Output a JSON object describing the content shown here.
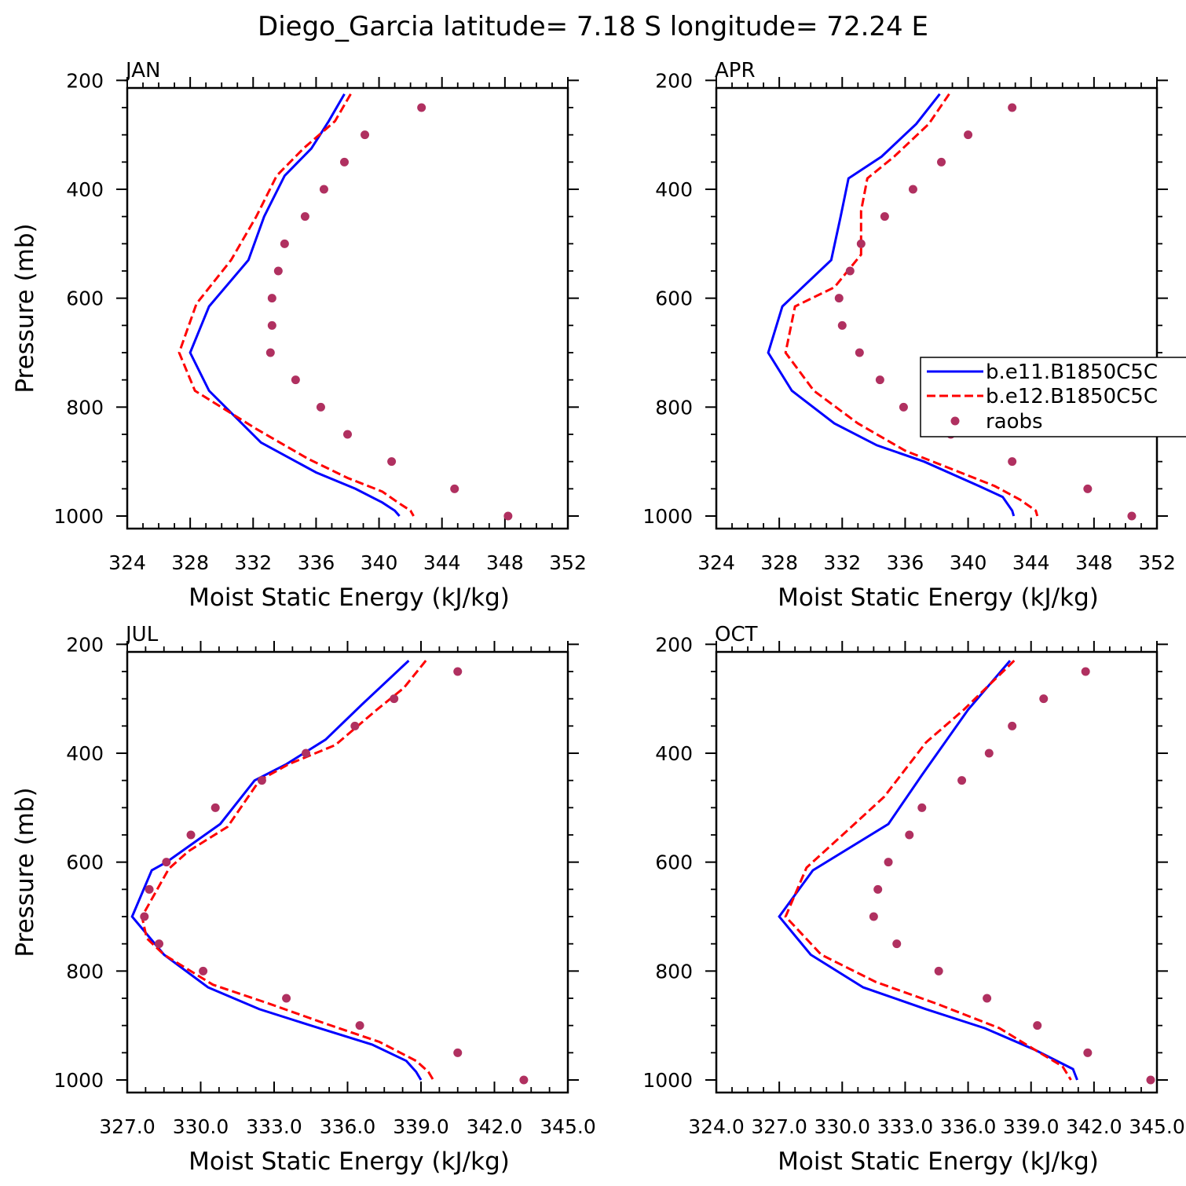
{
  "title": "Diego_Garcia  latitude= 7.18 S longitude= 72.24 E",
  "colors": {
    "series1": "#0000ff",
    "series2": "#ff0000",
    "raobs": "#b03060"
  },
  "chart_data": [
    {
      "type": "line",
      "panel": "JAN",
      "xlabel": "Moist Static Energy (kJ/kg)",
      "ylabel": "Pressure (mb)",
      "xlim": [
        324,
        352
      ],
      "ylim": [
        1000,
        200
      ],
      "xticks": [
        "324",
        "328",
        "332",
        "336",
        "340",
        "344",
        "348",
        "352"
      ],
      "xtick_values": [
        324,
        328,
        332,
        336,
        340,
        344,
        348,
        352
      ],
      "yticks": [
        "200",
        "400",
        "600",
        "800",
        "1000"
      ],
      "ytick_values": [
        200,
        400,
        600,
        800,
        1000
      ],
      "series": [
        {
          "kind": "solid",
          "color": "#0000ff",
          "points": [
            [
              337.8,
              225
            ],
            [
              336.8,
              275
            ],
            [
              335.7,
              325
            ],
            [
              334.0,
              375
            ],
            [
              332.7,
              450
            ],
            [
              331.7,
              530
            ],
            [
              329.2,
              615
            ],
            [
              328.0,
              700
            ],
            [
              329.2,
              770
            ],
            [
              332.5,
              865
            ],
            [
              336.0,
              920
            ],
            [
              338.5,
              950
            ],
            [
              340.2,
              975
            ],
            [
              341.0,
              990
            ],
            [
              341.3,
              1000
            ]
          ]
        },
        {
          "kind": "dashed",
          "color": "#ff0000",
          "points": [
            [
              338.2,
              225
            ],
            [
              337.2,
              275
            ],
            [
              335.2,
              325
            ],
            [
              333.5,
              375
            ],
            [
              332.2,
              450
            ],
            [
              330.6,
              530
            ],
            [
              328.4,
              610
            ],
            [
              327.3,
              700
            ],
            [
              328.3,
              770
            ],
            [
              332.2,
              840
            ],
            [
              335.5,
              895
            ],
            [
              338.0,
              930
            ],
            [
              340.2,
              955
            ],
            [
              341.2,
              975
            ],
            [
              342.0,
              990
            ],
            [
              342.2,
              1000
            ]
          ]
        },
        {
          "kind": "dots",
          "color": "#b03060",
          "points": [
            [
              342.7,
              250
            ],
            [
              339.1,
              300
            ],
            [
              337.8,
              350
            ],
            [
              336.5,
              400
            ],
            [
              335.3,
              450
            ],
            [
              334.0,
              500
            ],
            [
              333.6,
              550
            ],
            [
              333.2,
              600
            ],
            [
              333.2,
              650
            ],
            [
              333.1,
              700
            ],
            [
              334.7,
              750
            ],
            [
              336.3,
              800
            ],
            [
              338.0,
              850
            ],
            [
              340.8,
              900
            ],
            [
              344.8,
              950
            ],
            [
              348.2,
              1000
            ]
          ]
        }
      ]
    },
    {
      "type": "line",
      "panel": "APR",
      "xlabel": "Moist Static Energy (kJ/kg)",
      "ylabel": "",
      "xlim": [
        324,
        352
      ],
      "ylim": [
        1000,
        200
      ],
      "xticks": [
        "324",
        "328",
        "332",
        "336",
        "340",
        "344",
        "348",
        "352"
      ],
      "xtick_values": [
        324,
        328,
        332,
        336,
        340,
        344,
        348,
        352
      ],
      "yticks": [
        "200",
        "400",
        "600",
        "800",
        "1000"
      ],
      "ytick_values": [
        200,
        400,
        600,
        800,
        1000
      ],
      "legend": {
        "placement": "right",
        "entries": [
          "b.e11.B1850C5C",
          "b.e12.B1850C5C",
          "raobs"
        ]
      },
      "series": [
        {
          "kind": "solid",
          "color": "#0000ff",
          "points": [
            [
              338.2,
              225
            ],
            [
              336.7,
              280
            ],
            [
              334.5,
              340
            ],
            [
              332.4,
              380
            ],
            [
              331.9,
              450
            ],
            [
              331.3,
              530
            ],
            [
              328.2,
              615
            ],
            [
              327.3,
              700
            ],
            [
              328.8,
              770
            ],
            [
              331.5,
              830
            ],
            [
              334.2,
              870
            ],
            [
              337.2,
              900
            ],
            [
              340.7,
              945
            ],
            [
              342.2,
              965
            ],
            [
              342.8,
              990
            ],
            [
              342.9,
              1000
            ]
          ]
        },
        {
          "kind": "dashed",
          "color": "#ff0000",
          "points": [
            [
              338.8,
              225
            ],
            [
              337.5,
              280
            ],
            [
              335.3,
              340
            ],
            [
              333.6,
              380
            ],
            [
              333.2,
              440
            ],
            [
              333.2,
              520
            ],
            [
              331.5,
              580
            ],
            [
              329.0,
              615
            ],
            [
              328.4,
              700
            ],
            [
              330.2,
              770
            ],
            [
              333.0,
              830
            ],
            [
              336.0,
              880
            ],
            [
              339.5,
              920
            ],
            [
              341.7,
              945
            ],
            [
              343.3,
              970
            ],
            [
              344.3,
              990
            ],
            [
              344.4,
              1000
            ]
          ]
        },
        {
          "kind": "dots",
          "color": "#b03060",
          "points": [
            [
              342.8,
              250
            ],
            [
              340.0,
              300
            ],
            [
              338.3,
              350
            ],
            [
              336.5,
              400
            ],
            [
              334.7,
              450
            ],
            [
              333.2,
              500
            ],
            [
              332.5,
              550
            ],
            [
              331.8,
              600
            ],
            [
              332.0,
              650
            ],
            [
              333.1,
              700
            ],
            [
              334.4,
              750
            ],
            [
              335.9,
              800
            ],
            [
              338.9,
              850
            ],
            [
              342.8,
              900
            ],
            [
              347.6,
              950
            ],
            [
              350.4,
              1000
            ]
          ]
        }
      ]
    },
    {
      "type": "line",
      "panel": "JUL",
      "xlabel": "Moist Static Energy (kJ/kg)",
      "ylabel": "Pressure (mb)",
      "xlim": [
        327,
        345
      ],
      "ylim": [
        1000,
        200
      ],
      "xticks": [
        "327.0",
        "330.0",
        "333.0",
        "336.0",
        "339.0",
        "342.0",
        "345.0"
      ],
      "xtick_values": [
        327,
        330,
        333,
        336,
        339,
        342,
        345
      ],
      "yticks": [
        "200",
        "400",
        "600",
        "800",
        "1000"
      ],
      "ytick_values": [
        200,
        400,
        600,
        800,
        1000
      ],
      "series": [
        {
          "kind": "solid",
          "color": "#0000ff",
          "points": [
            [
              338.5,
              230
            ],
            [
              336.6,
              310
            ],
            [
              335.1,
              375
            ],
            [
              333.5,
              420
            ],
            [
              332.2,
              450
            ],
            [
              330.8,
              530
            ],
            [
              328.6,
              600
            ],
            [
              328.0,
              615
            ],
            [
              327.2,
              700
            ],
            [
              328.5,
              770
            ],
            [
              330.3,
              830
            ],
            [
              332.4,
              870
            ],
            [
              334.5,
              900
            ],
            [
              337.0,
              935
            ],
            [
              338.4,
              965
            ],
            [
              338.8,
              985
            ],
            [
              339.0,
              1000
            ]
          ]
        },
        {
          "kind": "dashed",
          "color": "#ff0000",
          "points": [
            [
              339.2,
              230
            ],
            [
              338.3,
              280
            ],
            [
              337.2,
              320
            ],
            [
              335.5,
              385
            ],
            [
              333.6,
              420
            ],
            [
              332.4,
              450
            ],
            [
              331.1,
              535
            ],
            [
              329.5,
              580
            ],
            [
              328.7,
              612
            ],
            [
              327.6,
              700
            ],
            [
              327.8,
              740
            ],
            [
              328.5,
              770
            ],
            [
              330.5,
              825
            ],
            [
              332.8,
              860
            ],
            [
              335.0,
              895
            ],
            [
              337.3,
              930
            ],
            [
              338.8,
              965
            ],
            [
              339.3,
              985
            ],
            [
              339.5,
              1000
            ]
          ]
        },
        {
          "kind": "dots",
          "color": "#b03060",
          "points": [
            [
              340.5,
              250
            ],
            [
              337.9,
              300
            ],
            [
              336.3,
              350
            ],
            [
              334.3,
              400
            ],
            [
              332.5,
              450
            ],
            [
              330.6,
              500
            ],
            [
              329.6,
              550
            ],
            [
              328.6,
              600
            ],
            [
              327.9,
              650
            ],
            [
              327.7,
              700
            ],
            [
              328.3,
              750
            ],
            [
              330.1,
              800
            ],
            [
              333.5,
              850
            ],
            [
              336.5,
              900
            ],
            [
              340.5,
              950
            ],
            [
              343.2,
              1000
            ]
          ]
        }
      ]
    },
    {
      "type": "line",
      "panel": "OCT",
      "xlabel": "Moist Static Energy (kJ/kg)",
      "ylabel": "",
      "xlim": [
        324,
        345
      ],
      "ylim": [
        1000,
        200
      ],
      "xticks": [
        "324.0",
        "327.0",
        "330.0",
        "333.0",
        "336.0",
        "339.0",
        "342.0",
        "345.0"
      ],
      "xtick_values": [
        324,
        327,
        330,
        333,
        336,
        339,
        342,
        345
      ],
      "yticks": [
        "200",
        "400",
        "600",
        "800",
        "1000"
      ],
      "ytick_values": [
        200,
        400,
        600,
        800,
        1000
      ],
      "series": [
        {
          "kind": "solid",
          "color": "#0000ff",
          "points": [
            [
              338.0,
              230
            ],
            [
              336.0,
              320
            ],
            [
              333.8,
              440
            ],
            [
              332.2,
              530
            ],
            [
              328.6,
              615
            ],
            [
              327.0,
              700
            ],
            [
              328.5,
              770
            ],
            [
              331.0,
              830
            ],
            [
              334.0,
              870
            ],
            [
              336.8,
              905
            ],
            [
              339.2,
              945
            ],
            [
              341.0,
              980
            ],
            [
              341.2,
              1000
            ]
          ]
        },
        {
          "kind": "dashed",
          "color": "#ff0000",
          "points": [
            [
              338.2,
              230
            ],
            [
              335.8,
              320
            ],
            [
              334.0,
              380
            ],
            [
              332.0,
              480
            ],
            [
              330.3,
              540
            ],
            [
              328.3,
              610
            ],
            [
              327.3,
              700
            ],
            [
              329.0,
              770
            ],
            [
              331.6,
              820
            ],
            [
              334.5,
              860
            ],
            [
              337.5,
              905
            ],
            [
              339.2,
              945
            ],
            [
              340.5,
              975
            ],
            [
              340.9,
              1000
            ]
          ]
        },
        {
          "kind": "dots",
          "color": "#b03060",
          "points": [
            [
              341.6,
              250
            ],
            [
              339.6,
              300
            ],
            [
              338.1,
              350
            ],
            [
              337.0,
              400
            ],
            [
              335.7,
              450
            ],
            [
              333.8,
              500
            ],
            [
              333.2,
              550
            ],
            [
              332.2,
              600
            ],
            [
              331.7,
              650
            ],
            [
              331.5,
              700
            ],
            [
              332.6,
              750
            ],
            [
              334.6,
              800
            ],
            [
              336.9,
              850
            ],
            [
              339.3,
              900
            ],
            [
              341.7,
              950
            ],
            [
              344.7,
              1000
            ]
          ]
        }
      ]
    }
  ]
}
